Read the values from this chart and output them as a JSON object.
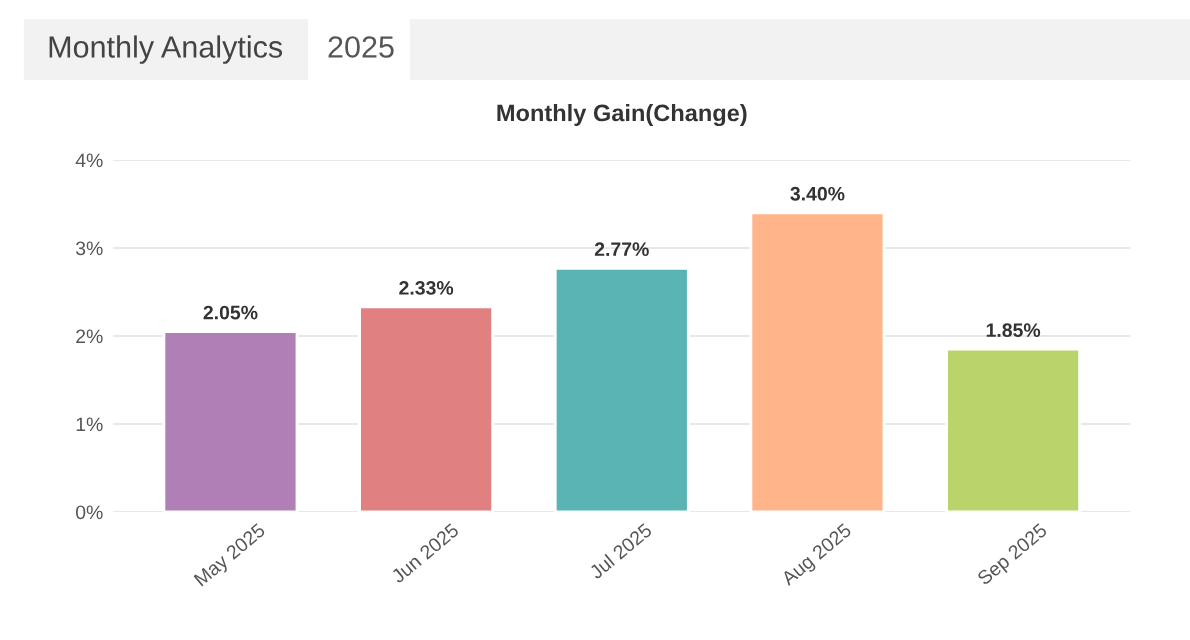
{
  "chart_data": {
    "type": "bar",
    "title": "Monthly Gain(Change)",
    "annotations": [
      "Monthly Analytics",
      "2025"
    ],
    "categories": [
      "May 2025",
      "Jun 2025",
      "Jul 2025",
      "Aug 2025",
      "Sep 2025"
    ],
    "values": [
      2.05,
      2.33,
      2.77,
      3.4,
      1.85
    ],
    "value_labels": [
      "2.05%",
      "2.33%",
      "2.77%",
      "3.40%",
      "1.85%"
    ],
    "colors": [
      "#b07fb5",
      "#e08080",
      "#5ab4b4",
      "#ffb48a",
      "#b8d46a"
    ],
    "ylim": [
      0,
      4
    ],
    "yticks": [
      {
        "value": 0,
        "label": "0%"
      },
      {
        "value": 1,
        "label": "1%"
      },
      {
        "value": 2,
        "label": "2%"
      },
      {
        "value": 3,
        "label": "3%"
      },
      {
        "value": 4,
        "label": "4%"
      }
    ],
    "grid": "y"
  }
}
